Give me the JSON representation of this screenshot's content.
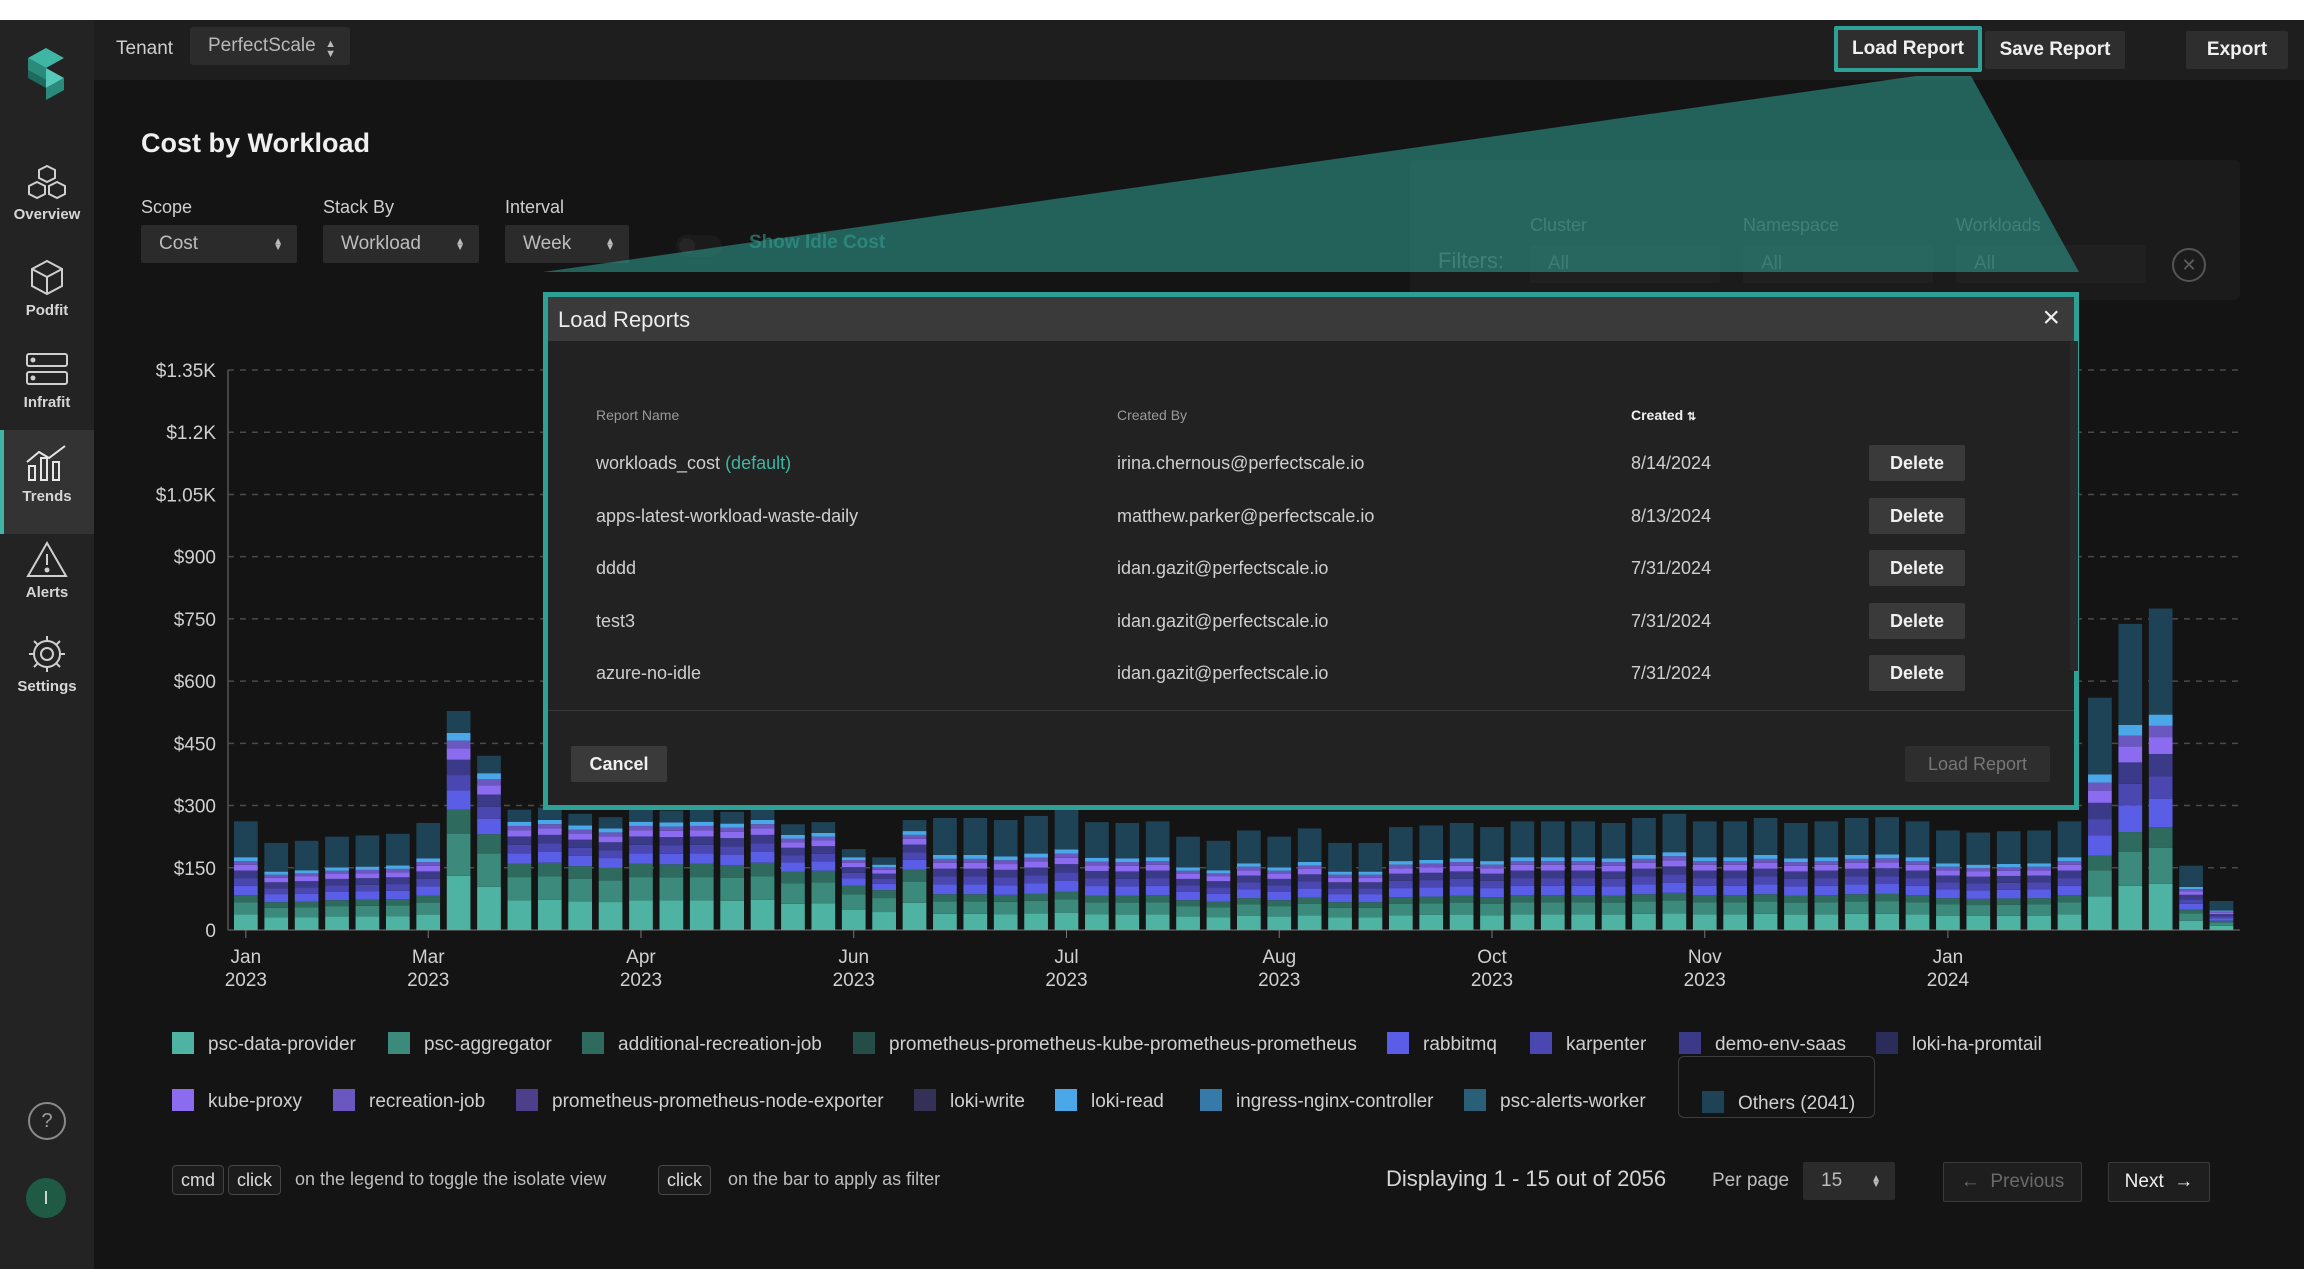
{
  "topbar": {
    "tenant_label": "Tenant",
    "tenant_value": "PerfectScale",
    "load_report": "Load Report",
    "save_report": "Save Report",
    "export": "Export"
  },
  "sidebar": {
    "items": [
      {
        "label": "Overview",
        "icon": "cubes-icon"
      },
      {
        "label": "Podfit",
        "icon": "cube-icon"
      },
      {
        "label": "Infrafit",
        "icon": "server-icon"
      },
      {
        "label": "Trends",
        "icon": "trends-icon"
      },
      {
        "label": "Alerts",
        "icon": "warning-icon"
      },
      {
        "label": "Settings",
        "icon": "gear-icon"
      }
    ],
    "active": "Trends",
    "help": "?",
    "avatar": "I"
  },
  "page": {
    "title": "Cost by Workload",
    "scope_label": "Scope",
    "scope_value": "Cost",
    "stack_label": "Stack By",
    "stack_value": "Workload",
    "interval_label": "Interval",
    "interval_value": "Week",
    "idle_label": "Show Idle Cost",
    "filters_label": "Filters:",
    "cluster_label": "Cluster",
    "cluster_value": "All",
    "namespace_label": "Namespace",
    "namespace_value": "All",
    "workloads_label": "Workloads",
    "workloads_value": "All"
  },
  "chart_data": {
    "type": "bar",
    "stacked": true,
    "ylim": [
      0,
      1350
    ],
    "yticks": [
      "0",
      "$150",
      "$300",
      "$450",
      "$600",
      "$750",
      "$900",
      "$1.05K",
      "$1.2K",
      "$1.35K"
    ],
    "xticks": [
      {
        "m": "Jan",
        "y": "2023"
      },
      {
        "m": "Mar",
        "y": "2023"
      },
      {
        "m": "Apr",
        "y": "2023"
      },
      {
        "m": "Jun",
        "y": "2023"
      },
      {
        "m": "Jul",
        "y": "2023"
      },
      {
        "m": "Aug",
        "y": "2023"
      },
      {
        "m": "Oct",
        "y": "2023"
      },
      {
        "m": "Nov",
        "y": "2023"
      },
      {
        "m": "Jan",
        "y": "2024"
      }
    ],
    "grid": true,
    "visible_totals": [
      262,
      210,
      215,
      225,
      228,
      232,
      258,
      528,
      420,
      290,
      295,
      280,
      272,
      290,
      288,
      290,
      285,
      295,
      255,
      260,
      195,
      175,
      265,
      270,
      270,
      265,
      275,
      290,
      260,
      258,
      262,
      225,
      215,
      240,
      225,
      245,
      210,
      210,
      248,
      252,
      258,
      248,
      262,
      262,
      262,
      258,
      270,
      280,
      262,
      262,
      270,
      258,
      262,
      270,
      272,
      262,
      240,
      235,
      238,
      240,
      262,
      560,
      738,
      775,
      155,
      70
    ],
    "hidden_range": [
      21,
      47
    ]
  },
  "legend": [
    {
      "name": "psc-data-provider",
      "color": "#4fb3a3"
    },
    {
      "name": "psc-aggregator",
      "color": "#3b8a7c"
    },
    {
      "name": "additional-recreation-job",
      "color": "#2f6a5f"
    },
    {
      "name": "prometheus-prometheus-kube-prometheus-prometheus",
      "color": "#244d47"
    },
    {
      "name": "rabbitmq",
      "color": "#5a5ee6"
    },
    {
      "name": "karpenter",
      "color": "#4a47b0"
    },
    {
      "name": "demo-env-saas",
      "color": "#3a3a88"
    },
    {
      "name": "loki-ha-promtail",
      "color": "#2c2c5a"
    },
    {
      "name": "kube-proxy",
      "color": "#8b6cf0"
    },
    {
      "name": "recreation-job",
      "color": "#6a57c0"
    },
    {
      "name": "prometheus-prometheus-node-exporter",
      "color": "#4d3f8a"
    },
    {
      "name": "loki-write",
      "color": "#353056"
    },
    {
      "name": "loki-read",
      "color": "#4aa8e8"
    },
    {
      "name": "ingress-nginx-controller",
      "color": "#357aa8"
    },
    {
      "name": "psc-alerts-worker",
      "color": "#2a5f78"
    },
    {
      "name": "Others (2041)",
      "color": "#1f4356"
    }
  ],
  "hints": {
    "cmd": "cmd",
    "click": "click",
    "legend_hint": "on the legend to toggle the isolate view",
    "click2": "click",
    "bar_hint": "on the bar to apply as filter"
  },
  "pagination": {
    "displaying": "Displaying 1 - 15 out of 2056",
    "per_page_label": "Per page",
    "per_page_value": "15",
    "previous": "Previous",
    "next": "Next"
  },
  "modal": {
    "title": "Load Reports",
    "col_name": "Report Name",
    "col_created_by": "Created By",
    "col_created": "Created",
    "rows": [
      {
        "name": "workloads_cost",
        "tag": "(default)",
        "by": "irina.chernous@perfectscale.io",
        "date": "8/14/2024",
        "action": "Delete"
      },
      {
        "name": "apps-latest-workload-waste-daily",
        "tag": "",
        "by": "matthew.parker@perfectscale.io",
        "date": "8/13/2024",
        "action": "Delete"
      },
      {
        "name": "dddd",
        "tag": "",
        "by": "idan.gazit@perfectscale.io",
        "date": "7/31/2024",
        "action": "Delete"
      },
      {
        "name": "test3",
        "tag": "",
        "by": "idan.gazit@perfectscale.io",
        "date": "7/31/2024",
        "action": "Delete"
      },
      {
        "name": "azure-no-idle",
        "tag": "",
        "by": "idan.gazit@perfectscale.io",
        "date": "7/31/2024",
        "action": "Delete"
      }
    ],
    "cancel": "Cancel",
    "load": "Load Report",
    "accent": "#2fa095"
  }
}
